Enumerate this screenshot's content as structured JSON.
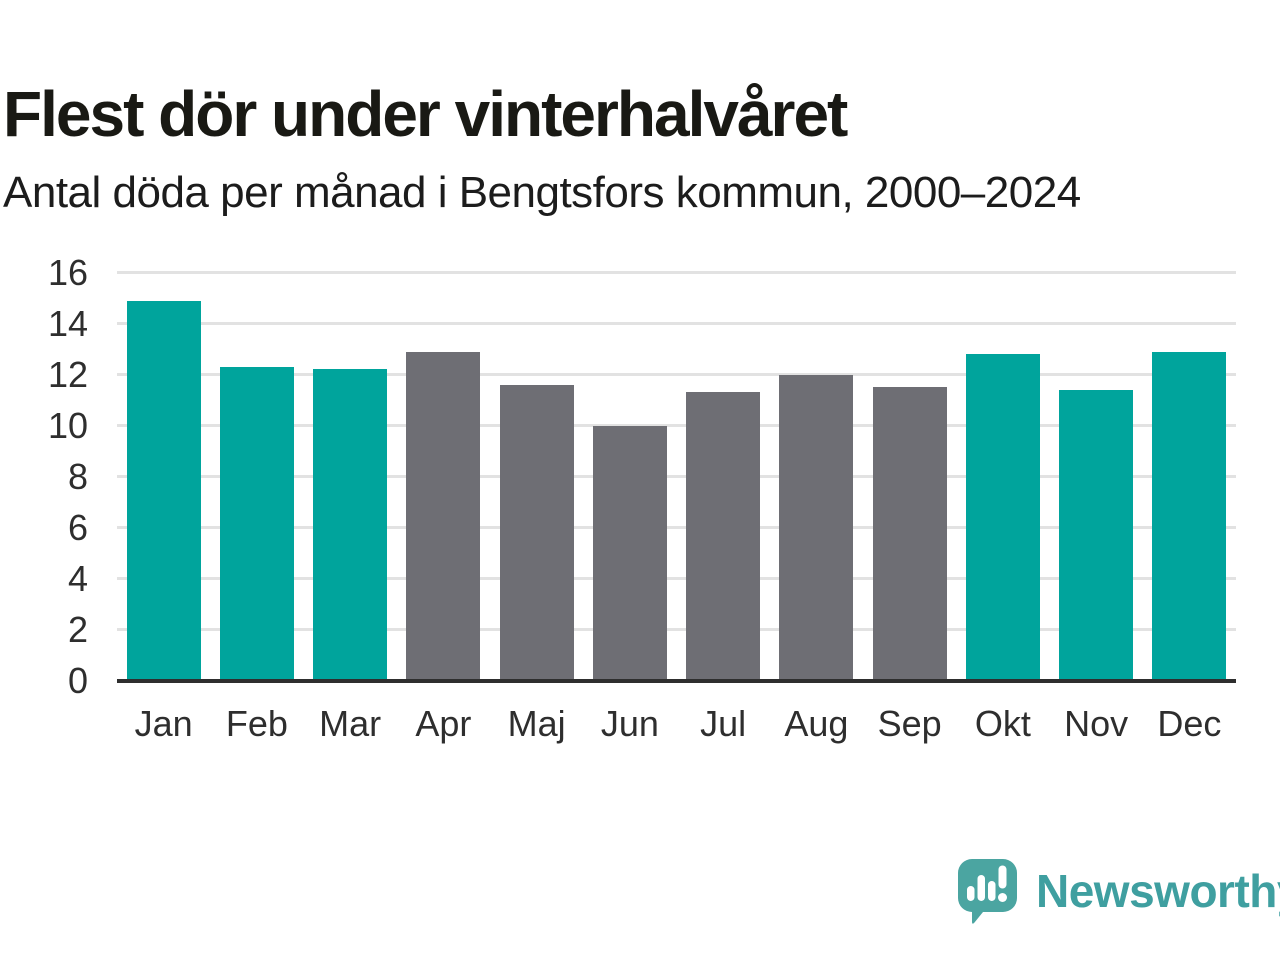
{
  "header": {
    "title": "Flest dör under vinterhalvåret",
    "subtitle": "Antal döda per månad i Bengtsfors kommun, 2000–2024"
  },
  "chart_data": {
    "type": "bar",
    "title": "Flest dör under vinterhalvåret",
    "subtitle": "Antal döda per månad i Bengtsfors kommun, 2000–2024",
    "categories": [
      "Jan",
      "Feb",
      "Mar",
      "Apr",
      "Maj",
      "Jun",
      "Jul",
      "Aug",
      "Sep",
      "Okt",
      "Nov",
      "Dec"
    ],
    "values": [
      14.9,
      12.3,
      12.2,
      12.9,
      11.6,
      10.0,
      11.3,
      12.0,
      11.5,
      12.8,
      11.4,
      12.9
    ],
    "bar_colors": [
      "teal",
      "teal",
      "teal",
      "gray",
      "gray",
      "gray",
      "gray",
      "gray",
      "gray",
      "teal",
      "teal",
      "teal"
    ],
    "palette": {
      "teal": "#00a49c",
      "gray": "#6e6e74"
    },
    "highlight_meaning": "winter-half-year months in teal, summer-half-year months in gray",
    "xlabel": "",
    "ylabel": "",
    "ylim": [
      0,
      16
    ],
    "yticks": [
      0,
      2,
      4,
      6,
      8,
      10,
      12,
      14,
      16
    ],
    "grid": "horizontal",
    "legend": "none"
  },
  "footer": {
    "logo_text": "Newsworthy",
    "logo_color": "#4ba5a1"
  }
}
